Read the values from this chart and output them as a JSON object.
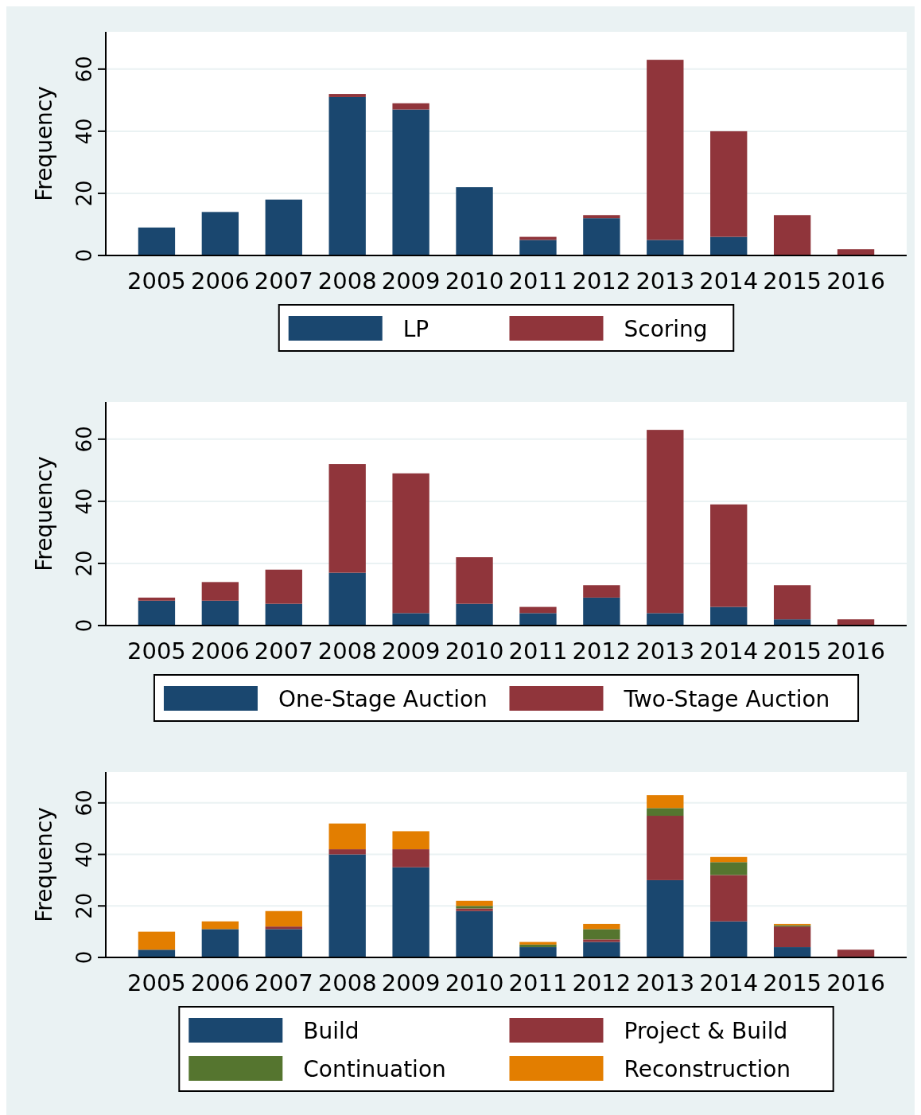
{
  "chart_data": [
    {
      "type": "bar",
      "stacked": true,
      "ylabel": "Frequency",
      "categories": [
        "2005",
        "2006",
        "2007",
        "2008",
        "2009",
        "2010",
        "2011",
        "2012",
        "2013",
        "2014",
        "2015",
        "2016"
      ],
      "ylim": [
        0,
        72
      ],
      "yticks": [
        0,
        20,
        40,
        60
      ],
      "grid": "y",
      "legend": "bottom",
      "series": [
        {
          "name": "LP",
          "color": "#1a476f",
          "values": [
            9,
            14,
            18,
            51,
            47,
            22,
            5,
            12,
            5,
            6,
            0,
            0
          ]
        },
        {
          "name": "Scoring",
          "color": "#90353b",
          "values": [
            0,
            0,
            0,
            1,
            2,
            0,
            1,
            1,
            58,
            34,
            13,
            2
          ]
        }
      ]
    },
    {
      "type": "bar",
      "stacked": true,
      "ylabel": "Frequency",
      "categories": [
        "2005",
        "2006",
        "2007",
        "2008",
        "2009",
        "2010",
        "2011",
        "2012",
        "2013",
        "2014",
        "2015",
        "2016"
      ],
      "ylim": [
        0,
        72
      ],
      "yticks": [
        0,
        20,
        40,
        60
      ],
      "grid": "y",
      "legend": "bottom",
      "series": [
        {
          "name": "One-Stage Auction",
          "color": "#1a476f",
          "values": [
            8,
            8,
            7,
            17,
            4,
            7,
            4,
            9,
            4,
            6,
            2,
            0
          ]
        },
        {
          "name": "Two-Stage Auction",
          "color": "#90353b",
          "values": [
            1,
            6,
            11,
            35,
            45,
            15,
            2,
            4,
            59,
            33,
            11,
            2
          ]
        }
      ]
    },
    {
      "type": "bar",
      "stacked": true,
      "ylabel": "Frequency",
      "categories": [
        "2005",
        "2006",
        "2007",
        "2008",
        "2009",
        "2010",
        "2011",
        "2012",
        "2013",
        "2014",
        "2015",
        "2016"
      ],
      "ylim": [
        0,
        72
      ],
      "yticks": [
        0,
        20,
        40,
        60
      ],
      "grid": "y",
      "legend": "bottom",
      "series": [
        {
          "name": "Build",
          "color": "#1a476f",
          "values": [
            3,
            11,
            11,
            40,
            35,
            18,
            4,
            6,
            30,
            14,
            4,
            0
          ]
        },
        {
          "name": "Project & Build",
          "color": "#90353b",
          "values": [
            0,
            0,
            1,
            2,
            7,
            1,
            0,
            1,
            25,
            18,
            8,
            3
          ]
        },
        {
          "name": "Continuation",
          "color": "#55752f",
          "values": [
            0,
            0,
            0,
            0,
            0,
            1,
            1,
            4,
            3,
            5,
            0.5,
            0
          ]
        },
        {
          "name": "Reconstruction",
          "color": "#e37e00",
          "values": [
            7,
            3,
            6,
            10,
            7,
            2,
            1,
            2,
            5,
            2,
            0.5,
            0
          ]
        }
      ]
    }
  ]
}
